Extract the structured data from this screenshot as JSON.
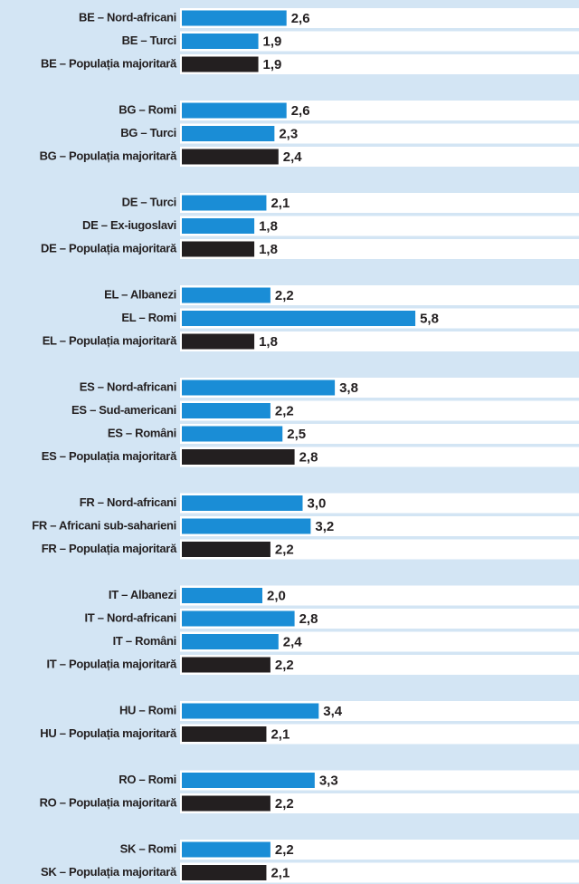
{
  "chart_data": {
    "type": "bar",
    "orientation": "horizontal",
    "color": "#1a8dd6",
    "majority_color": "#231f20",
    "groups": [
      {
        "categories": [
          "BE – Nord-africani",
          "BE – Turci",
          "BE – Populația majoritară"
        ],
        "values": [
          2.6,
          1.9,
          1.9
        ],
        "value_labels": [
          "2,6",
          "1,9",
          "1,9"
        ]
      },
      {
        "categories": [
          "BG – Romi",
          "BG – Turci",
          "BG – Populația majoritară"
        ],
        "values": [
          2.6,
          2.3,
          2.4
        ],
        "value_labels": [
          "2,6",
          "2,3",
          "2,4"
        ]
      },
      {
        "categories": [
          "DE – Turci",
          "DE – Ex-iugoslavi",
          "DE – Populația majoritară"
        ],
        "values": [
          2.1,
          1.8,
          1.8
        ],
        "value_labels": [
          "2,1",
          "1,8",
          "1,8"
        ]
      },
      {
        "categories": [
          "EL – Albanezi",
          "EL – Romi",
          "EL – Populația majoritară"
        ],
        "values": [
          2.2,
          5.8,
          1.8
        ],
        "value_labels": [
          "2,2",
          "5,8",
          "1,8"
        ]
      },
      {
        "categories": [
          "ES – Nord-africani",
          "ES – Sud-americani",
          "ES – Români",
          "ES – Populația majoritară"
        ],
        "values": [
          3.8,
          2.2,
          2.5,
          2.8
        ],
        "value_labels": [
          "3,8",
          "2,2",
          "2,5",
          "2,8"
        ]
      },
      {
        "categories": [
          "FR – Nord-africani",
          "FR – Africani sub-saharieni",
          "FR – Populația majoritară"
        ],
        "values": [
          3.0,
          3.2,
          2.2
        ],
        "value_labels": [
          "3,0",
          "3,2",
          "2,2"
        ]
      },
      {
        "categories": [
          "IT – Albanezi",
          "IT – Nord-africani",
          "IT – Români",
          "IT – Populația majoritară"
        ],
        "values": [
          2.0,
          2.8,
          2.4,
          2.2
        ],
        "value_labels": [
          "2,0",
          "2,8",
          "2,4",
          "2,2"
        ]
      },
      {
        "categories": [
          "HU – Romi",
          "HU – Populația majoritară"
        ],
        "values": [
          3.4,
          2.1
        ],
        "value_labels": [
          "3,4",
          "2,1"
        ]
      },
      {
        "categories": [
          "RO – Romi",
          "RO – Populația majoritară"
        ],
        "values": [
          3.3,
          2.2
        ],
        "value_labels": [
          "3,3",
          "2,2"
        ]
      },
      {
        "categories": [
          "SK – Romi",
          "SK – Populația majoritară"
        ],
        "values": [
          2.2,
          2.1
        ],
        "value_labels": [
          "2,2",
          "2,1"
        ]
      }
    ]
  }
}
